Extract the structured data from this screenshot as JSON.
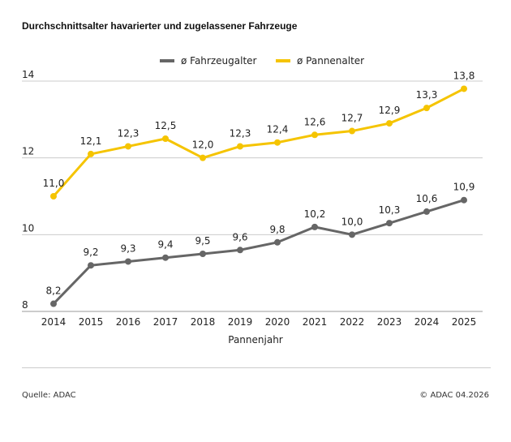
{
  "title": "Durchschnittsalter havarierter und zugelassener Fahrzeuge",
  "footer": {
    "source": "Quelle: ADAC",
    "copyright": "© ADAC 04.2026"
  },
  "chart_data": {
    "type": "line",
    "title": "Durchschnittsalter havarierter und zugelassener Fahrzeuge",
    "xlabel": "Pannenjahr",
    "ylabel": "",
    "x": [
      "2014",
      "2015",
      "2016",
      "2017",
      "2018",
      "2019",
      "2020",
      "2021",
      "2022",
      "2023",
      "2024",
      "2025"
    ],
    "ylim": [
      8,
      14
    ],
    "yticks": [
      8,
      10,
      12,
      14
    ],
    "grid": true,
    "legend": "top",
    "series": [
      {
        "name": "ø Fahrzeugalter",
        "color": "#666666",
        "values": [
          8.2,
          9.2,
          9.3,
          9.4,
          9.5,
          9.6,
          9.8,
          10.2,
          10.0,
          10.3,
          10.6,
          10.9
        ]
      },
      {
        "name": "ø Pannenalter",
        "color": "#f5c400",
        "values": [
          11.0,
          12.1,
          12.3,
          12.5,
          12.0,
          12.3,
          12.4,
          12.6,
          12.7,
          12.9,
          13.3,
          13.8
        ]
      }
    ]
  }
}
